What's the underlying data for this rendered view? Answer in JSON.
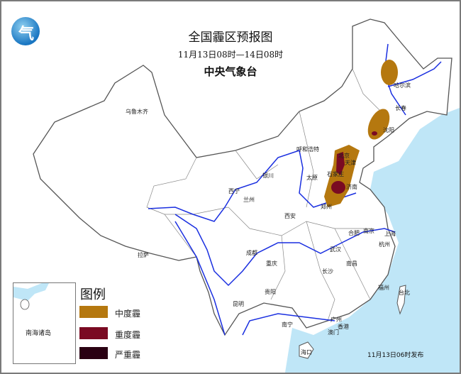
{
  "header": {
    "title": "全国霾区预报图",
    "period": "11月13日08时—14日08时",
    "agency": "中央气象台",
    "logo_glyph": "气"
  },
  "cities": [
    {
      "name": "乌鲁木齐"
    },
    {
      "name": "哈尔滨"
    },
    {
      "name": "长春"
    },
    {
      "name": "沈阳"
    },
    {
      "name": "呼和浩特"
    },
    {
      "name": "北京"
    },
    {
      "name": "天津"
    },
    {
      "name": "太原"
    },
    {
      "name": "石家庄"
    },
    {
      "name": "济南"
    },
    {
      "name": "郑州"
    },
    {
      "name": "银川"
    },
    {
      "name": "西宁"
    },
    {
      "name": "兰州"
    },
    {
      "name": "西安"
    },
    {
      "name": "合肥"
    },
    {
      "name": "南京"
    },
    {
      "name": "上海"
    },
    {
      "name": "杭州"
    },
    {
      "name": "武汉"
    },
    {
      "name": "成都"
    },
    {
      "name": "重庆"
    },
    {
      "name": "拉萨"
    },
    {
      "name": "长沙"
    },
    {
      "name": "南昌"
    },
    {
      "name": "贵阳"
    },
    {
      "name": "昆明"
    },
    {
      "name": "福州"
    },
    {
      "name": "台北"
    },
    {
      "name": "南宁"
    },
    {
      "name": "广州"
    },
    {
      "name": "香港"
    },
    {
      "name": "澳门"
    },
    {
      "name": "海口"
    }
  ],
  "inset": {
    "label": "南海诸岛"
  },
  "legend": {
    "title": "图例",
    "items": [
      {
        "label": "中度霾",
        "color": "#b5780f"
      },
      {
        "label": "重度霾",
        "color": "#7a0a22"
      },
      {
        "label": "严重霾",
        "color": "#2a0012"
      }
    ]
  },
  "colors": {
    "sea": "#bfe6f7",
    "river": "#1a2fe0",
    "border": "#555555"
  },
  "footer": {
    "issued": "11月13日06时发布"
  }
}
